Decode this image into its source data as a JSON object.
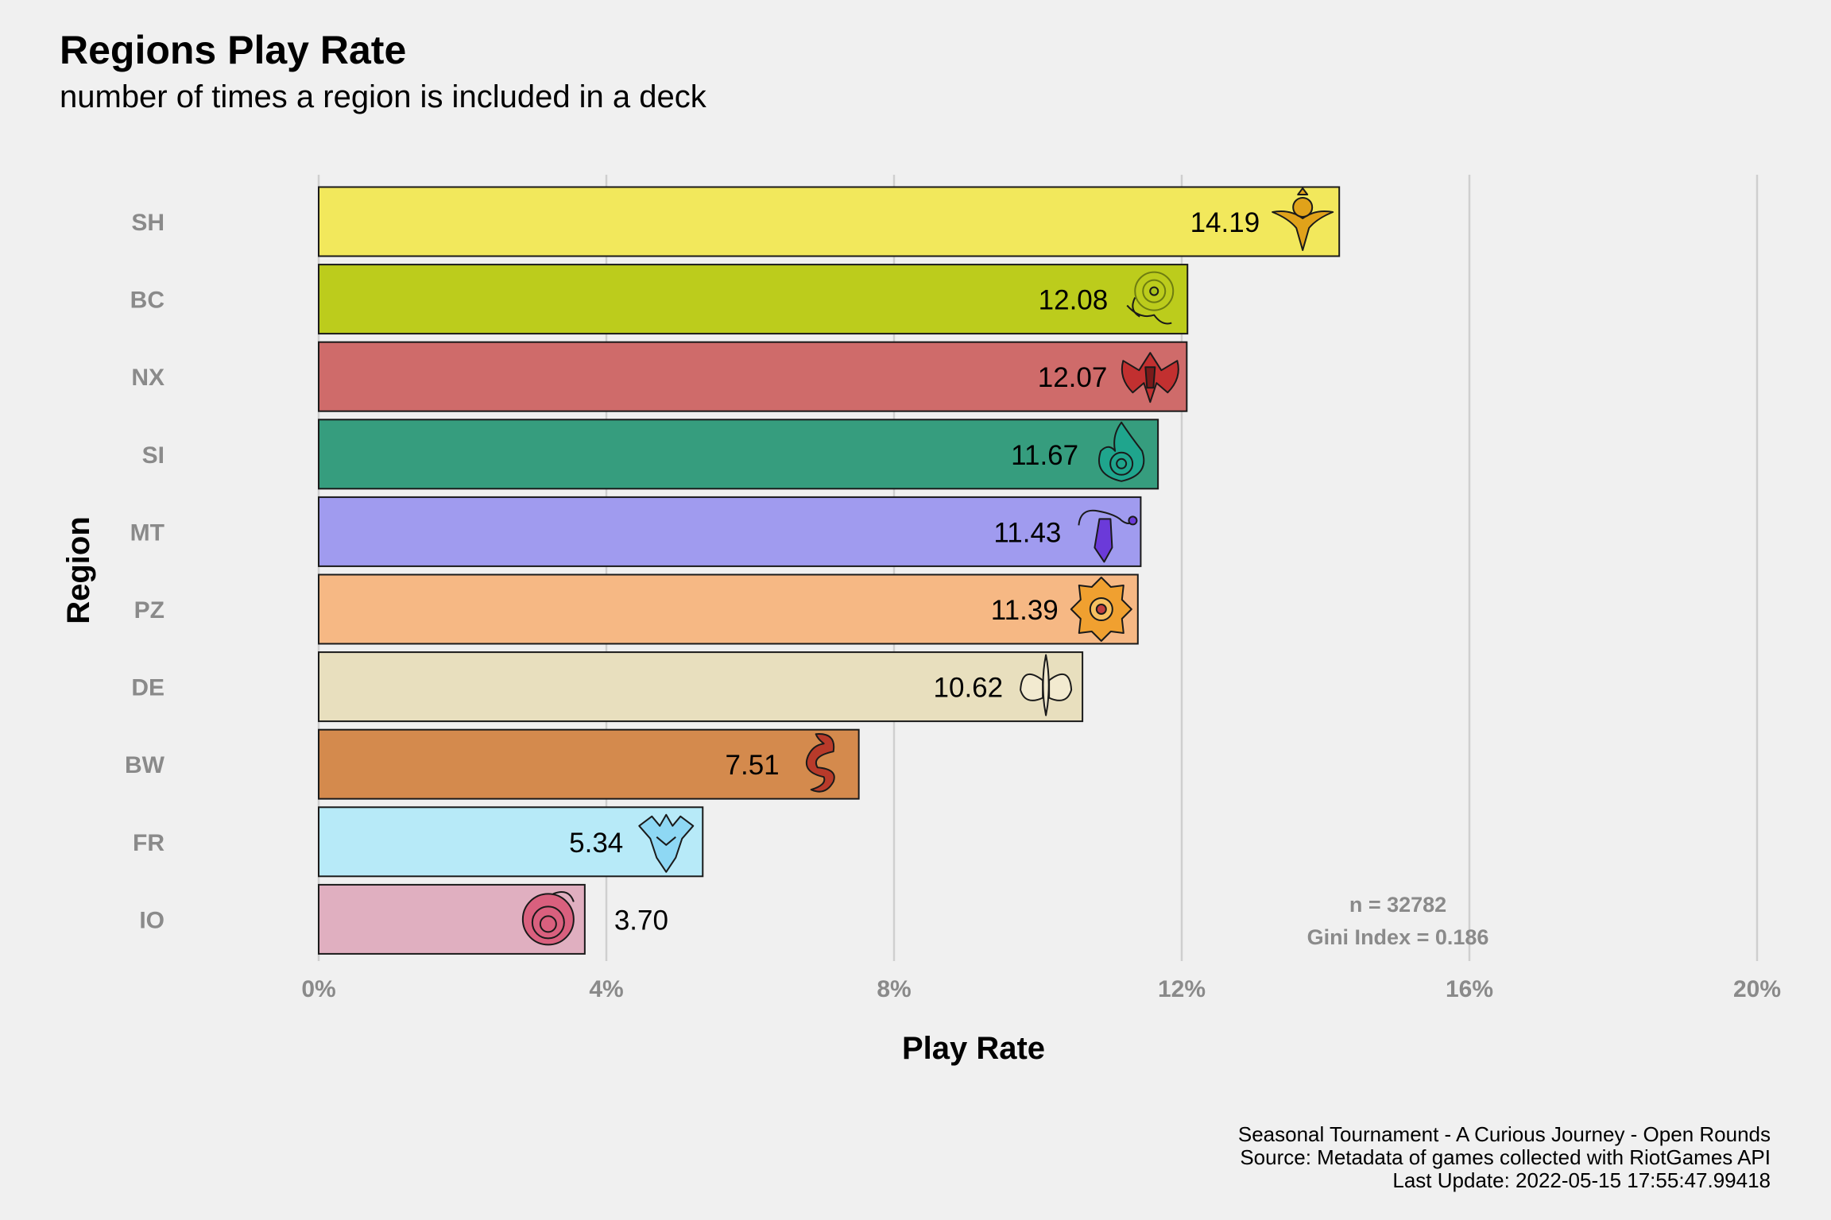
{
  "title": "Regions Play Rate",
  "subtitle": "number of times a region is included in a deck",
  "caption": [
    "Seasonal Tournament - A Curious Journey - Open Rounds",
    "Source: Metadata of games collected with RiotGames API",
    "Last Update: 2022-05-15 17:55:47.99418"
  ],
  "annotations": {
    "n": "n = 32782",
    "gini": "Gini Index = 0.186"
  },
  "chart_data": {
    "type": "bar",
    "orientation": "horizontal",
    "xlabel": "Play Rate",
    "ylabel": "Region",
    "xlim": [
      0,
      20
    ],
    "x_ticks": [
      "0%",
      "4%",
      "8%",
      "12%",
      "16%",
      "20%"
    ],
    "grid": "vertical major gridlines",
    "categories": [
      "SH",
      "BC",
      "NX",
      "SI",
      "MT",
      "PZ",
      "DE",
      "BW",
      "FR",
      "IO"
    ],
    "values": [
      14.19,
      12.08,
      12.07,
      11.67,
      11.43,
      11.39,
      10.62,
      7.51,
      5.34,
      3.7
    ],
    "value_labels": [
      "14.19",
      "12.08",
      "12.07",
      "11.67",
      "11.43",
      "11.39",
      "10.62",
      "7.51",
      "5.34",
      "3.70"
    ],
    "colors": [
      "#f2e85c",
      "#bccc1c",
      "#cf6b6a",
      "#369d7e",
      "#a09bef",
      "#f6b884",
      "#e8dfbe",
      "#d48a4d",
      "#b7eaf8",
      "#e0afc0"
    ],
    "icons": [
      "shurima-icon",
      "bandle-city-icon",
      "noxus-icon",
      "shadow-isles-icon",
      "targon-icon",
      "piltover-zaun-icon",
      "demacia-icon",
      "bilgewater-icon",
      "freljord-icon",
      "ionia-icon"
    ],
    "icon_colors": [
      "#e0a21a",
      "#a9c21c",
      "#c23030",
      "#1fa58d",
      "#6b3ad9",
      "#f0a030",
      "#f2ead0",
      "#b83a2a",
      "#8ed8f4",
      "#d9607e"
    ]
  }
}
